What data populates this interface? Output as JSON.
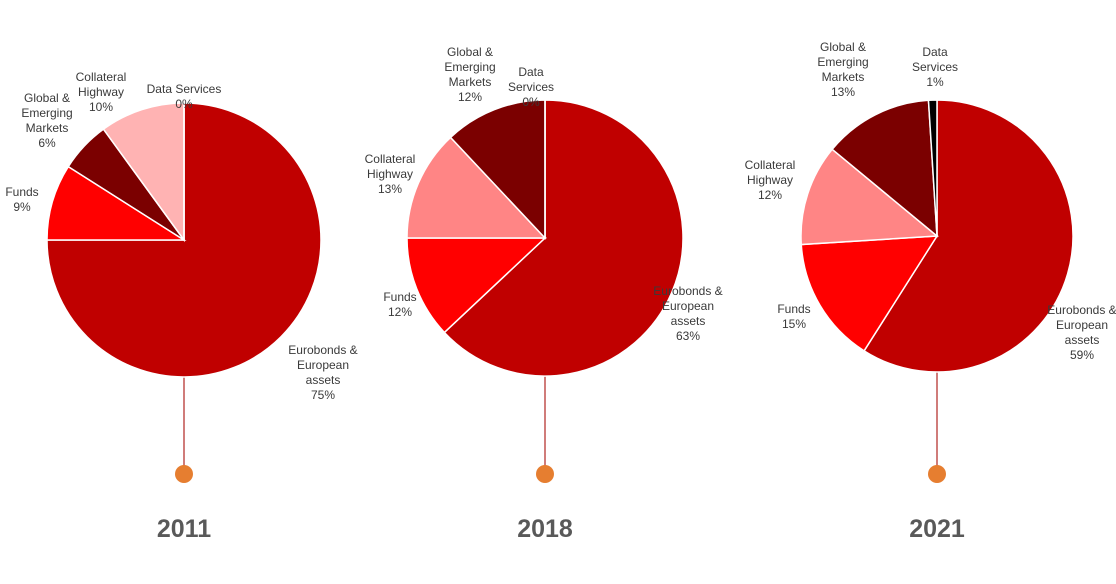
{
  "chart_data": [
    {
      "type": "pie",
      "title": "2011",
      "categories": [
        "Eurobonds & European assets",
        "Funds",
        "Global & Emerging Markets",
        "Collateral Highway",
        "Data Services"
      ],
      "values": [
        75,
        9,
        6,
        10,
        0
      ],
      "value_labels": [
        "75%",
        "9%",
        "6%",
        "10%",
        "0%"
      ],
      "colors": [
        "#c00000",
        "#ff0000",
        "#7b0000",
        "#ffb3b3",
        "#000000"
      ]
    },
    {
      "type": "pie",
      "title": "2018",
      "categories": [
        "Eurobonds & European assets",
        "Funds",
        "Collateral Highway",
        "Global & Emerging Markets",
        "Data Services"
      ],
      "values": [
        63,
        12,
        13,
        12,
        0
      ],
      "value_labels": [
        "63%",
        "12%",
        "13%",
        "12%",
        "0%"
      ],
      "colors": [
        "#c00000",
        "#ff0000",
        "#ff8585",
        "#7b0000",
        "#000000"
      ]
    },
    {
      "type": "pie",
      "title": "2021",
      "categories": [
        "Eurobonds & European assets",
        "Funds",
        "Collateral Highway",
        "Global & Emerging Markets",
        "Data Services"
      ],
      "values": [
        59,
        15,
        12,
        13,
        1
      ],
      "value_labels": [
        "59%",
        "15%",
        "12%",
        "13%",
        "1%"
      ],
      "colors": [
        "#c00000",
        "#ff0000",
        "#ff8585",
        "#7b0000",
        "#000000"
      ]
    }
  ]
}
